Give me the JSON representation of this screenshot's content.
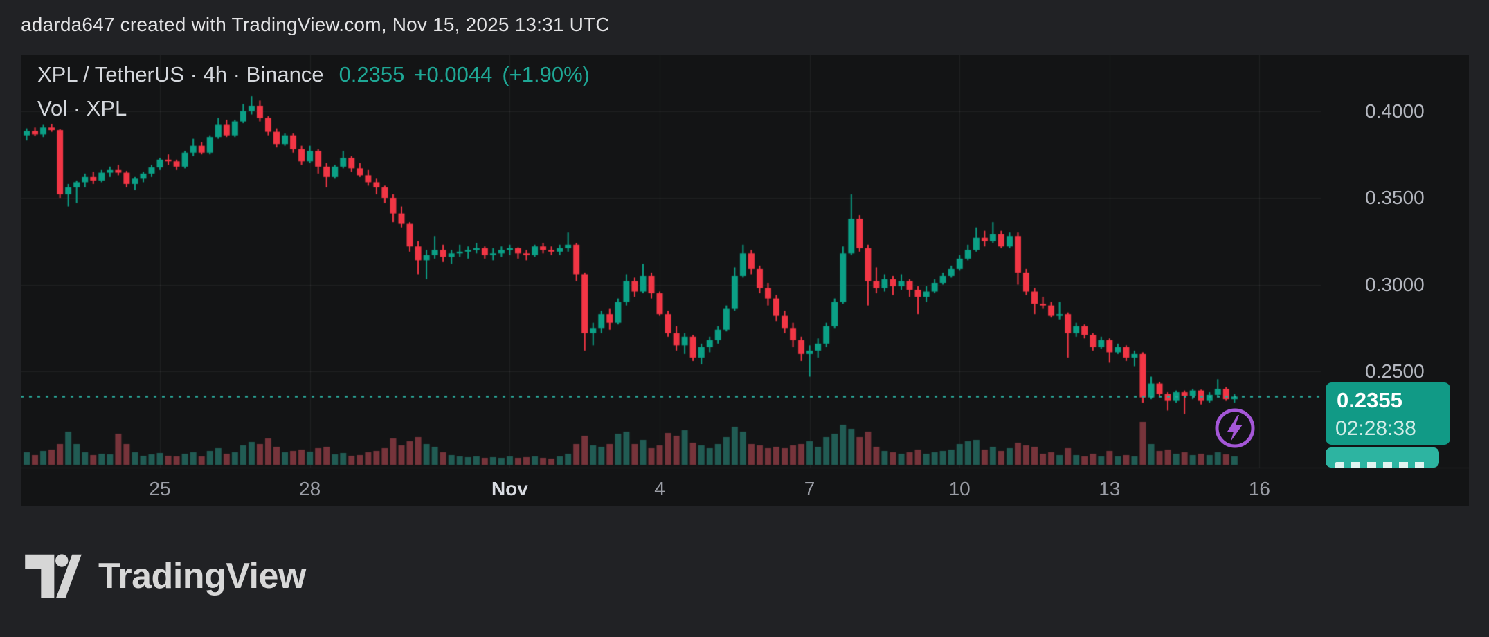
{
  "page": {
    "header": "adarda647 created with TradingView.com, Nov 15, 2025 13:31 UTC"
  },
  "chart": {
    "title": {
      "instrument": "XPL / TetherUS · 4h · Binance",
      "price": "0.2355",
      "change": "+0.0044",
      "change_pct": "(+1.90%)"
    },
    "indicator_label": "Vol · XPL",
    "colors": {
      "up": "#0ba086",
      "down": "#f23645",
      "vol_up": "#215c54",
      "vol_down": "#77343b",
      "grid": "rgba(255,255,255,0.06)",
      "separator": "#2b2d31",
      "dotted_price_line": "#2aa99b",
      "badge_bg": "#119a86",
      "badge_secondary_bg": "#2db4a1",
      "axis_text": "#b4b7bf",
      "accent_teal": "#1ea795",
      "panel_bg": "#131415",
      "page_bg": "#212225",
      "icon_purple": "#a557d8"
    },
    "price_axis": {
      "labels": [
        {
          "text": "0.4000",
          "price": 0.4
        },
        {
          "text": "0.3500",
          "price": 0.35
        },
        {
          "text": "0.3000",
          "price": 0.3
        },
        {
          "text": "0.2500",
          "price": 0.25
        }
      ],
      "price_label": {
        "text": "0.2355",
        "countdown": "02:28:38"
      }
    },
    "time_axis": {
      "labels": [
        {
          "text": "25",
          "day_offset": 0
        },
        {
          "text": "28",
          "day_offset": 3
        },
        {
          "text": "Nov",
          "day_offset": 7,
          "emphasis": true
        },
        {
          "text": "4",
          "day_offset": 10
        },
        {
          "text": "7",
          "day_offset": 13
        },
        {
          "text": "10",
          "day_offset": 16
        },
        {
          "text": "13",
          "day_offset": 19
        },
        {
          "text": "16",
          "day_offset": 22
        }
      ]
    }
  },
  "chart_data": {
    "type": "candlestick",
    "title": "XPL / TetherUS · 4h · Binance",
    "symbol": "XPL/TetherUS",
    "exchange": "Binance",
    "interval": "4h",
    "start_time": "2025-10-22 08:00 UTC",
    "end_time": "2025-11-15 12:00 UTC (forming)",
    "last_price": 0.2355,
    "change": 0.0044,
    "change_pct": 1.9,
    "current_price_line": 0.2355,
    "y_axis_ticks": [
      0.4,
      0.35,
      0.3,
      0.25
    ],
    "x_axis_ticks": [
      "25",
      "28",
      "Nov",
      "4",
      "7",
      "10",
      "13",
      "16"
    ],
    "ylim": [
      0.215,
      0.425
    ],
    "grid": true,
    "legend_position": "top-left",
    "volume_units": "relative (pixel height, unlabeled in chart)",
    "columns": [
      "open",
      "high",
      "low",
      "close",
      "volume_rel"
    ],
    "candles": [
      [
        0.386,
        0.39,
        0.383,
        0.3885,
        18
      ],
      [
        0.3885,
        0.3905,
        0.3855,
        0.3865,
        14
      ],
      [
        0.3865,
        0.392,
        0.385,
        0.3905,
        20
      ],
      [
        0.3905,
        0.3925,
        0.388,
        0.389,
        22
      ],
      [
        0.389,
        0.3895,
        0.35,
        0.352,
        30
      ],
      [
        0.352,
        0.358,
        0.345,
        0.356,
        48
      ],
      [
        0.356,
        0.36,
        0.347,
        0.359,
        30
      ],
      [
        0.359,
        0.364,
        0.356,
        0.362,
        18
      ],
      [
        0.362,
        0.365,
        0.358,
        0.36,
        14
      ],
      [
        0.36,
        0.366,
        0.359,
        0.3645,
        16
      ],
      [
        0.3645,
        0.368,
        0.362,
        0.366,
        15
      ],
      [
        0.366,
        0.369,
        0.363,
        0.3645,
        45
      ],
      [
        0.3645,
        0.3655,
        0.356,
        0.358,
        30
      ],
      [
        0.358,
        0.362,
        0.3545,
        0.361,
        18
      ],
      [
        0.361,
        0.365,
        0.359,
        0.364,
        13
      ],
      [
        0.364,
        0.369,
        0.362,
        0.3675,
        15
      ],
      [
        0.3675,
        0.373,
        0.366,
        0.372,
        17
      ],
      [
        0.372,
        0.375,
        0.369,
        0.371,
        13
      ],
      [
        0.371,
        0.372,
        0.366,
        0.368,
        12
      ],
      [
        0.368,
        0.377,
        0.367,
        0.376,
        16
      ],
      [
        0.376,
        0.384,
        0.374,
        0.38,
        18
      ],
      [
        0.38,
        0.382,
        0.375,
        0.376,
        12
      ],
      [
        0.376,
        0.386,
        0.375,
        0.385,
        20
      ],
      [
        0.385,
        0.396,
        0.384,
        0.392,
        24
      ],
      [
        0.392,
        0.395,
        0.385,
        0.386,
        16
      ],
      [
        0.386,
        0.395,
        0.385,
        0.394,
        18
      ],
      [
        0.394,
        0.404,
        0.393,
        0.4,
        28
      ],
      [
        0.4,
        0.4085,
        0.398,
        0.403,
        33
      ],
      [
        0.403,
        0.406,
        0.394,
        0.396,
        30
      ],
      [
        0.396,
        0.397,
        0.386,
        0.388,
        38
      ],
      [
        0.388,
        0.39,
        0.379,
        0.381,
        26
      ],
      [
        0.381,
        0.387,
        0.38,
        0.386,
        18
      ],
      [
        0.386,
        0.387,
        0.376,
        0.378,
        20
      ],
      [
        0.378,
        0.38,
        0.369,
        0.371,
        22
      ],
      [
        0.371,
        0.38,
        0.37,
        0.377,
        19
      ],
      [
        0.377,
        0.378,
        0.364,
        0.368,
        24
      ],
      [
        0.368,
        0.37,
        0.356,
        0.362,
        26
      ],
      [
        0.362,
        0.369,
        0.361,
        0.368,
        15
      ],
      [
        0.368,
        0.377,
        0.367,
        0.373,
        17
      ],
      [
        0.373,
        0.374,
        0.365,
        0.367,
        13
      ],
      [
        0.367,
        0.37,
        0.362,
        0.363,
        14
      ],
      [
        0.363,
        0.366,
        0.357,
        0.359,
        18
      ],
      [
        0.359,
        0.361,
        0.352,
        0.356,
        20
      ],
      [
        0.356,
        0.357,
        0.347,
        0.35,
        24
      ],
      [
        0.35,
        0.352,
        0.336,
        0.341,
        38
      ],
      [
        0.341,
        0.345,
        0.333,
        0.335,
        28
      ],
      [
        0.335,
        0.336,
        0.319,
        0.322,
        34
      ],
      [
        0.322,
        0.325,
        0.306,
        0.314,
        40
      ],
      [
        0.314,
        0.32,
        0.303,
        0.317,
        30
      ],
      [
        0.317,
        0.328,
        0.315,
        0.32,
        26
      ],
      [
        0.32,
        0.323,
        0.313,
        0.316,
        18
      ],
      [
        0.316,
        0.32,
        0.312,
        0.318,
        14
      ],
      [
        0.318,
        0.323,
        0.316,
        0.319,
        12
      ],
      [
        0.319,
        0.322,
        0.315,
        0.32,
        11
      ],
      [
        0.32,
        0.324,
        0.318,
        0.321,
        12
      ],
      [
        0.321,
        0.322,
        0.315,
        0.317,
        10
      ],
      [
        0.317,
        0.321,
        0.314,
        0.318,
        11
      ],
      [
        0.318,
        0.322,
        0.316,
        0.32,
        10
      ],
      [
        0.32,
        0.323,
        0.317,
        0.321,
        12
      ],
      [
        0.321,
        0.3215,
        0.315,
        0.318,
        10
      ],
      [
        0.318,
        0.32,
        0.314,
        0.317,
        11
      ],
      [
        0.317,
        0.323,
        0.316,
        0.322,
        12
      ],
      [
        0.322,
        0.324,
        0.318,
        0.32,
        10
      ],
      [
        0.32,
        0.322,
        0.317,
        0.319,
        9
      ],
      [
        0.319,
        0.323,
        0.317,
        0.321,
        12
      ],
      [
        0.321,
        0.33,
        0.319,
        0.323,
        16
      ],
      [
        0.323,
        0.324,
        0.302,
        0.306,
        30
      ],
      [
        0.306,
        0.307,
        0.262,
        0.272,
        42
      ],
      [
        0.272,
        0.278,
        0.265,
        0.275,
        28
      ],
      [
        0.275,
        0.285,
        0.272,
        0.283,
        26
      ],
      [
        0.283,
        0.286,
        0.274,
        0.278,
        30
      ],
      [
        0.278,
        0.292,
        0.277,
        0.29,
        45
      ],
      [
        0.29,
        0.306,
        0.288,
        0.302,
        48
      ],
      [
        0.302,
        0.304,
        0.293,
        0.296,
        30
      ],
      [
        0.296,
        0.312,
        0.295,
        0.305,
        36
      ],
      [
        0.305,
        0.307,
        0.292,
        0.295,
        24
      ],
      [
        0.295,
        0.296,
        0.282,
        0.283,
        28
      ],
      [
        0.283,
        0.285,
        0.27,
        0.272,
        46
      ],
      [
        0.272,
        0.276,
        0.262,
        0.265,
        42
      ],
      [
        0.265,
        0.272,
        0.26,
        0.27,
        50
      ],
      [
        0.27,
        0.271,
        0.256,
        0.258,
        32
      ],
      [
        0.258,
        0.266,
        0.254,
        0.264,
        28
      ],
      [
        0.264,
        0.27,
        0.261,
        0.268,
        24
      ],
      [
        0.268,
        0.276,
        0.266,
        0.274,
        30
      ],
      [
        0.274,
        0.288,
        0.273,
        0.286,
        40
      ],
      [
        0.286,
        0.31,
        0.285,
        0.305,
        55
      ],
      [
        0.305,
        0.323,
        0.304,
        0.318,
        48
      ],
      [
        0.318,
        0.32,
        0.306,
        0.309,
        30
      ],
      [
        0.309,
        0.311,
        0.295,
        0.298,
        28
      ],
      [
        0.298,
        0.301,
        0.288,
        0.292,
        24
      ],
      [
        0.292,
        0.294,
        0.279,
        0.282,
        26
      ],
      [
        0.282,
        0.285,
        0.272,
        0.275,
        24
      ],
      [
        0.275,
        0.278,
        0.264,
        0.268,
        28
      ],
      [
        0.268,
        0.27,
        0.256,
        0.26,
        30
      ],
      [
        0.26,
        0.265,
        0.247,
        0.262,
        34
      ],
      [
        0.262,
        0.269,
        0.258,
        0.266,
        26
      ],
      [
        0.266,
        0.278,
        0.264,
        0.276,
        40
      ],
      [
        0.276,
        0.292,
        0.275,
        0.29,
        45
      ],
      [
        0.29,
        0.322,
        0.289,
        0.318,
        58
      ],
      [
        0.318,
        0.352,
        0.317,
        0.338,
        52
      ],
      [
        0.338,
        0.34,
        0.319,
        0.321,
        40
      ],
      [
        0.321,
        0.323,
        0.288,
        0.302,
        48
      ],
      [
        0.302,
        0.31,
        0.295,
        0.298,
        26
      ],
      [
        0.298,
        0.306,
        0.296,
        0.303,
        20
      ],
      [
        0.303,
        0.305,
        0.294,
        0.299,
        18
      ],
      [
        0.299,
        0.306,
        0.297,
        0.302,
        16
      ],
      [
        0.302,
        0.303,
        0.293,
        0.297,
        18
      ],
      [
        0.297,
        0.299,
        0.283,
        0.293,
        22
      ],
      [
        0.293,
        0.299,
        0.29,
        0.296,
        16
      ],
      [
        0.296,
        0.303,
        0.295,
        0.301,
        18
      ],
      [
        0.301,
        0.307,
        0.3,
        0.305,
        20
      ],
      [
        0.305,
        0.311,
        0.304,
        0.309,
        22
      ],
      [
        0.309,
        0.317,
        0.308,
        0.315,
        30
      ],
      [
        0.315,
        0.323,
        0.314,
        0.32,
        34
      ],
      [
        0.32,
        0.333,
        0.319,
        0.327,
        36
      ],
      [
        0.327,
        0.331,
        0.322,
        0.325,
        22
      ],
      [
        0.325,
        0.336,
        0.324,
        0.329,
        26
      ],
      [
        0.329,
        0.331,
        0.321,
        0.322,
        20
      ],
      [
        0.322,
        0.33,
        0.321,
        0.328,
        24
      ],
      [
        0.328,
        0.33,
        0.3,
        0.307,
        32
      ],
      [
        0.307,
        0.309,
        0.294,
        0.296,
        28
      ],
      [
        0.296,
        0.298,
        0.283,
        0.289,
        26
      ],
      [
        0.289,
        0.293,
        0.286,
        0.288,
        16
      ],
      [
        0.288,
        0.29,
        0.281,
        0.282,
        18
      ],
      [
        0.282,
        0.29,
        0.28,
        0.283,
        14
      ],
      [
        0.283,
        0.284,
        0.258,
        0.272,
        24
      ],
      [
        0.272,
        0.278,
        0.27,
        0.276,
        14
      ],
      [
        0.276,
        0.277,
        0.269,
        0.271,
        12
      ],
      [
        0.271,
        0.272,
        0.262,
        0.264,
        16
      ],
      [
        0.264,
        0.27,
        0.263,
        0.268,
        12
      ],
      [
        0.268,
        0.269,
        0.255,
        0.261,
        20
      ],
      [
        0.261,
        0.266,
        0.26,
        0.264,
        12
      ],
      [
        0.264,
        0.265,
        0.256,
        0.258,
        14
      ],
      [
        0.258,
        0.262,
        0.253,
        0.26,
        12
      ],
      [
        0.26,
        0.261,
        0.232,
        0.235,
        62
      ],
      [
        0.235,
        0.247,
        0.234,
        0.243,
        30
      ],
      [
        0.243,
        0.244,
        0.236,
        0.237,
        20
      ],
      [
        0.237,
        0.238,
        0.2275,
        0.233,
        22
      ],
      [
        0.233,
        0.239,
        0.232,
        0.238,
        16
      ],
      [
        0.238,
        0.239,
        0.2255,
        0.236,
        18
      ],
      [
        0.236,
        0.24,
        0.234,
        0.239,
        14
      ],
      [
        0.239,
        0.2395,
        0.231,
        0.233,
        16
      ],
      [
        0.233,
        0.238,
        0.232,
        0.2365,
        14
      ],
      [
        0.2365,
        0.2455,
        0.236,
        0.24,
        18
      ],
      [
        0.24,
        0.241,
        0.233,
        0.234,
        15
      ],
      [
        0.234,
        0.237,
        0.232,
        0.2355,
        12
      ]
    ]
  },
  "logo": {
    "text": "TradingView"
  },
  "overlay": {
    "lightning_icon": "flash-boost-icon"
  }
}
